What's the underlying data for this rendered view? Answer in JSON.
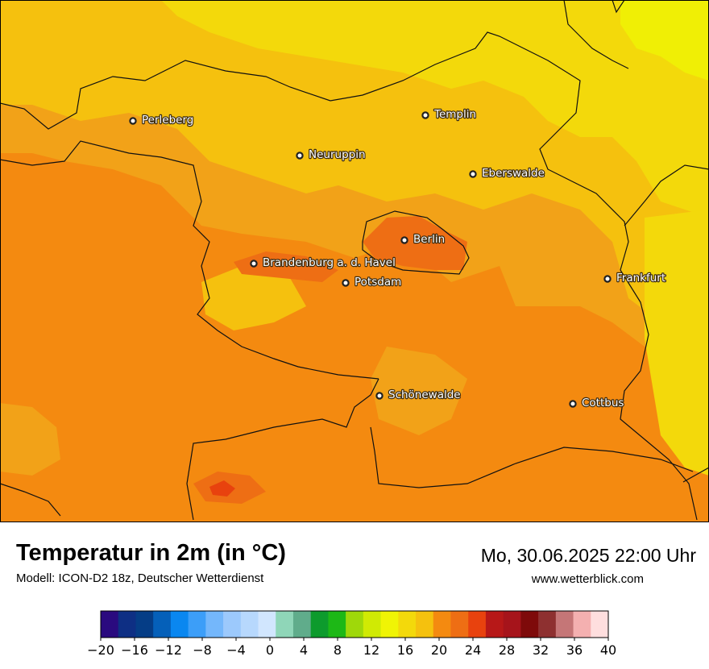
{
  "map": {
    "title": "Temperatur in 2m (in °C)",
    "model": "Modell: ICON-D2 18z, Deutscher Wetterdienst",
    "datetime": "Mo, 30.06.2025 22:00 Uhr",
    "website": "www.wetterblick.com",
    "colors": {
      "base": "#f48a10",
      "warm": "#f2a218",
      "mild": "#f5c10e",
      "cool": "#f3d90b",
      "cooler": "#f0ef05",
      "hot": "#ee6e14",
      "hotter": "#e8420e"
    },
    "cities": [
      {
        "name": "Perleberg"
      },
      {
        "name": "Templin"
      },
      {
        "name": "Neuruppin"
      },
      {
        "name": "Eberswalde"
      },
      {
        "name": "Berlin"
      },
      {
        "name": "Brandenburg a. d. Havel"
      },
      {
        "name": "Potsdam"
      },
      {
        "name": "Frankfurt"
      },
      {
        "name": "Schönewalde"
      },
      {
        "name": "Cottbus"
      }
    ]
  },
  "legend": {
    "colors": [
      "#2a0a7f",
      "#0e2f84",
      "#053d86",
      "#0560b9",
      "#0a87f0",
      "#3c9ef8",
      "#74b7fb",
      "#9cc9fc",
      "#b7d8fd",
      "#d1e6fe",
      "#8fd6b8",
      "#60ac8b",
      "#0d9b2d",
      "#1db816",
      "#9fd80a",
      "#d0ea04",
      "#f0f405",
      "#f3d90b",
      "#f5c10e",
      "#f48a10",
      "#ee6e14",
      "#e8420e",
      "#b71818",
      "#a6141b",
      "#7e0a0a",
      "#8e3030",
      "#c57677",
      "#f4b0b0",
      "#fedede"
    ],
    "ticks": [
      "−20",
      "−16",
      "−12",
      "−8",
      "−4",
      "0",
      "4",
      "8",
      "12",
      "16",
      "20",
      "24",
      "28",
      "32",
      "36",
      "40"
    ]
  }
}
